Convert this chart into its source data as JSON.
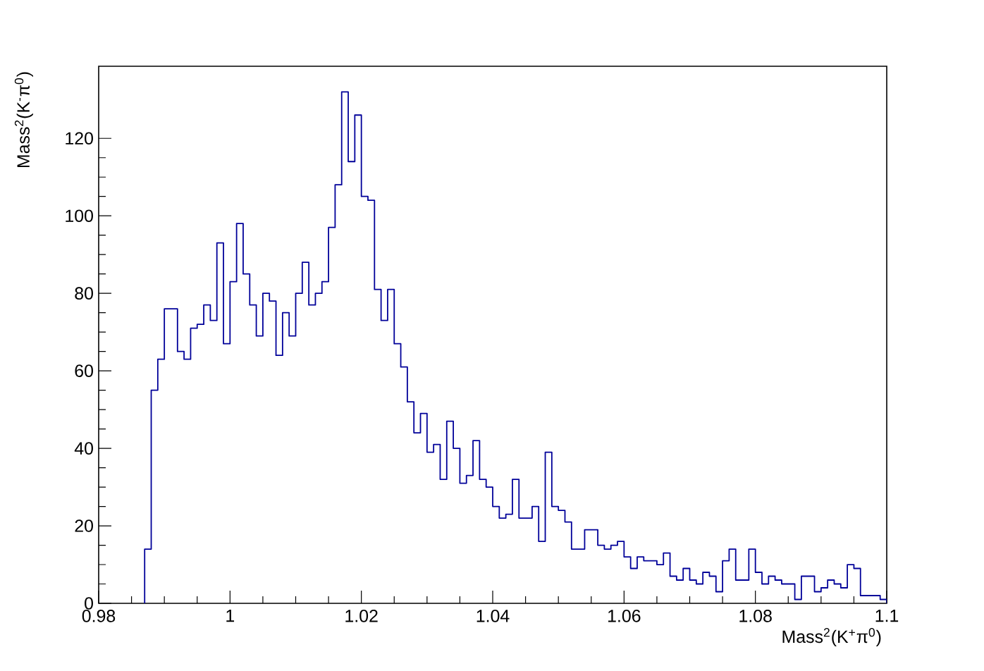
{
  "chart_data": {
    "type": "histogram",
    "xlabel": "Mass$^{2}$(K$^{+}$π$^{0}$)",
    "ylabel": "Mass$^{2}$(K$^{-}$π$^{0}$)",
    "bins": [
      0.987,
      0.988,
      0.989,
      0.99,
      0.991,
      0.992,
      0.993,
      0.994,
      0.995,
      0.996,
      0.997,
      0.998,
      0.999,
      1.0,
      1.001,
      1.002,
      1.003,
      1.004,
      1.005,
      1.006,
      1.007,
      1.008,
      1.009,
      1.01,
      1.011,
      1.012,
      1.013,
      1.014,
      1.015,
      1.016,
      1.017,
      1.018,
      1.019,
      1.02,
      1.021,
      1.022,
      1.023,
      1.024,
      1.025,
      1.026,
      1.027,
      1.028,
      1.029,
      1.03,
      1.031,
      1.032,
      1.033,
      1.034,
      1.035,
      1.036,
      1.037,
      1.038,
      1.039,
      1.04,
      1.041,
      1.042,
      1.043,
      1.044,
      1.045,
      1.046,
      1.047,
      1.048,
      1.049,
      1.05,
      1.051,
      1.052,
      1.053,
      1.054,
      1.055,
      1.056,
      1.057,
      1.058,
      1.059,
      1.06,
      1.061,
      1.062,
      1.063,
      1.064,
      1.065,
      1.066,
      1.067,
      1.068,
      1.069,
      1.07,
      1.071,
      1.072,
      1.073,
      1.074,
      1.075,
      1.076,
      1.077,
      1.078,
      1.079,
      1.08,
      1.081,
      1.082,
      1.083,
      1.084,
      1.085,
      1.086,
      1.087,
      1.088,
      1.089,
      1.09,
      1.091,
      1.092,
      1.093,
      1.094,
      1.095,
      1.096,
      1.097,
      1.098,
      1.099,
      1.1
    ],
    "values": [
      14,
      55,
      63,
      76,
      76,
      65,
      63,
      71,
      72,
      77,
      73,
      93,
      67,
      83,
      98,
      85,
      77,
      69,
      80,
      78,
      64,
      75,
      69,
      80,
      88,
      77,
      80,
      83,
      97,
      108,
      132,
      114,
      126,
      105,
      104,
      81,
      73,
      81,
      67,
      61,
      52,
      44,
      49,
      39,
      41,
      32,
      47,
      40,
      31,
      33,
      42,
      32,
      30,
      25,
      22,
      23,
      32,
      22,
      22,
      25,
      16,
      39,
      25,
      24,
      21,
      14,
      14,
      19,
      19,
      15,
      14,
      15,
      16,
      12,
      9,
      12,
      11,
      11,
      10,
      13,
      7,
      6,
      9,
      6,
      5,
      8,
      7,
      3,
      11,
      14,
      6,
      6,
      14,
      8,
      5,
      7,
      6,
      5,
      5,
      1,
      7,
      7,
      3,
      4,
      6,
      5,
      4,
      10,
      9,
      2,
      2,
      2,
      1
    ],
    "color": "#000099",
    "xlim": [
      0.98,
      1.1
    ],
    "ylim": [
      0,
      138.6
    ],
    "xticks": [
      0.98,
      1,
      1.02,
      1.04,
      1.06,
      1.08,
      1.1
    ],
    "yticks": [
      0,
      20,
      40,
      60,
      80,
      100,
      120
    ]
  }
}
